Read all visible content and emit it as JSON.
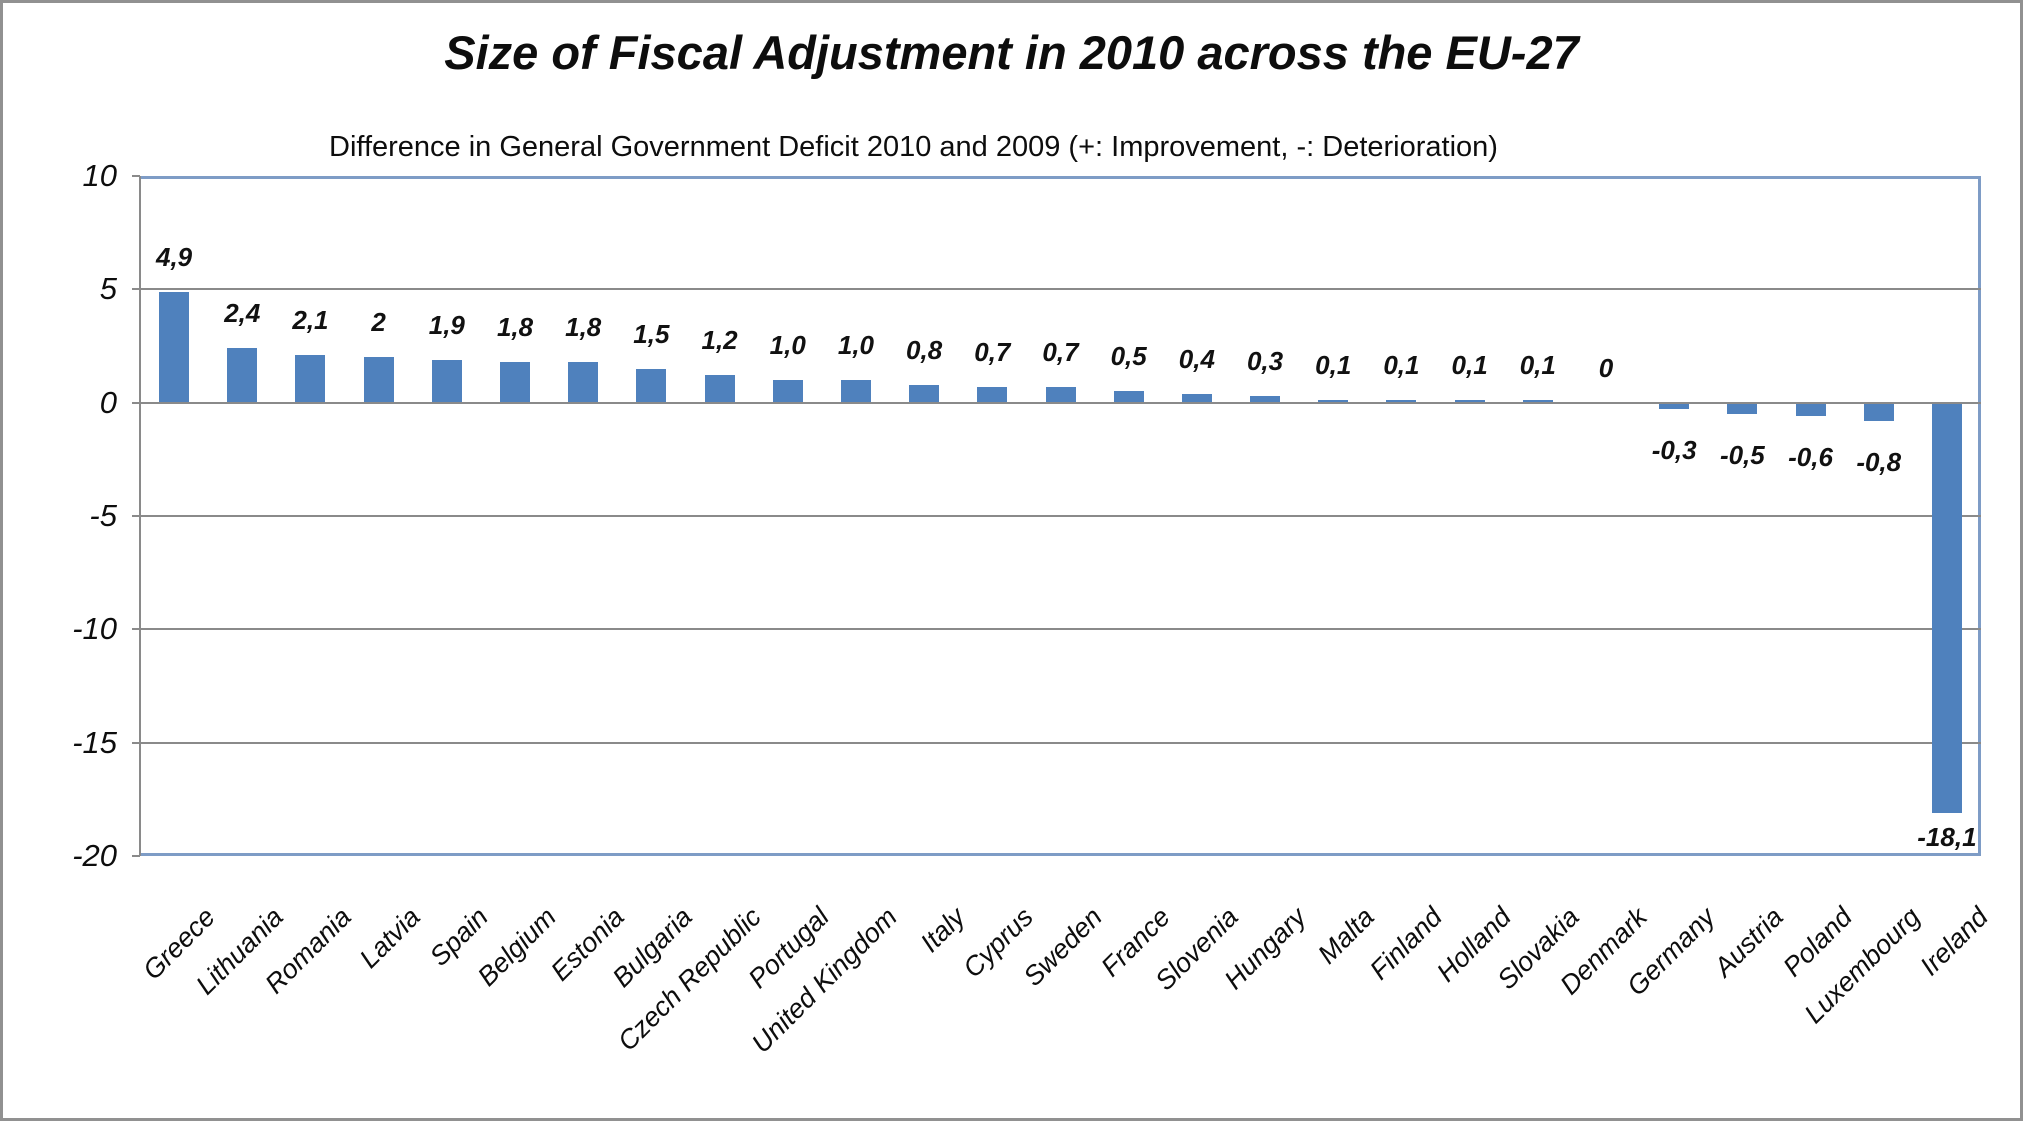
{
  "title": "Size of Fiscal Adjustment in 2010 across the EU-27",
  "subtitle": "Difference in General Government Deficit 2010 and 2009 (+: Improvement, -: Deterioration)",
  "chart_data": {
    "type": "bar",
    "title": "Size of Fiscal Adjustment in 2010 across the EU-27",
    "subtitle": "Difference in General Government Deficit 2010 and 2009 (+: Improvement, -: Deterioration)",
    "categories": [
      "Greece",
      "Lithuania",
      "Romania",
      "Latvia",
      "Spain",
      "Belgium",
      "Estonia",
      "Bulgaria",
      "Czech Republic",
      "Portugal",
      "United Kingdom",
      "Italy",
      "Cyprus",
      "Sweden",
      "France",
      "Slovenia",
      "Hungary",
      "Malta",
      "Finland",
      "Holland",
      "Slovakia",
      "Denmark",
      "Germany",
      "Austria",
      "Poland",
      "Luxembourg",
      "Ireland"
    ],
    "values": [
      4.9,
      2.4,
      2.1,
      2,
      1.9,
      1.8,
      1.8,
      1.5,
      1.2,
      1.0,
      1.0,
      0.8,
      0.7,
      0.7,
      0.5,
      0.4,
      0.3,
      0.1,
      0.1,
      0.1,
      0.1,
      0,
      -0.3,
      -0.5,
      -0.6,
      -0.8,
      -18.1
    ],
    "data_labels": [
      "4,9",
      "2,4",
      "2,1",
      "2",
      "1,9",
      "1,8",
      "1,8",
      "1,5",
      "1,2",
      "1,0",
      "1,0",
      "0,8",
      "0,7",
      "0,7",
      "0,5",
      "0,4",
      "0,3",
      "0,1",
      "0,1",
      "0,1",
      "0,1",
      "0",
      "-0,3",
      "-0,5",
      "-0,6",
      "-0,8",
      "-18,1"
    ],
    "xlabel": "",
    "ylabel": "",
    "ylim": [
      -20,
      10
    ],
    "y_ticks": [
      10,
      5,
      0,
      -5,
      -10,
      -15,
      -20
    ],
    "y_tick_labels": [
      "10",
      "5",
      "0",
      "-5",
      "-10",
      "-15",
      "-20"
    ],
    "grid": true,
    "legend": "none",
    "bar_color": "#4F81BD",
    "gridline_color": "#8A8A8A",
    "axis_line_color": "#8A8A8A",
    "plot_border_color": "#7E9CC6",
    "outer_border_color": "#919191",
    "text_color": "#0d0d0d"
  }
}
